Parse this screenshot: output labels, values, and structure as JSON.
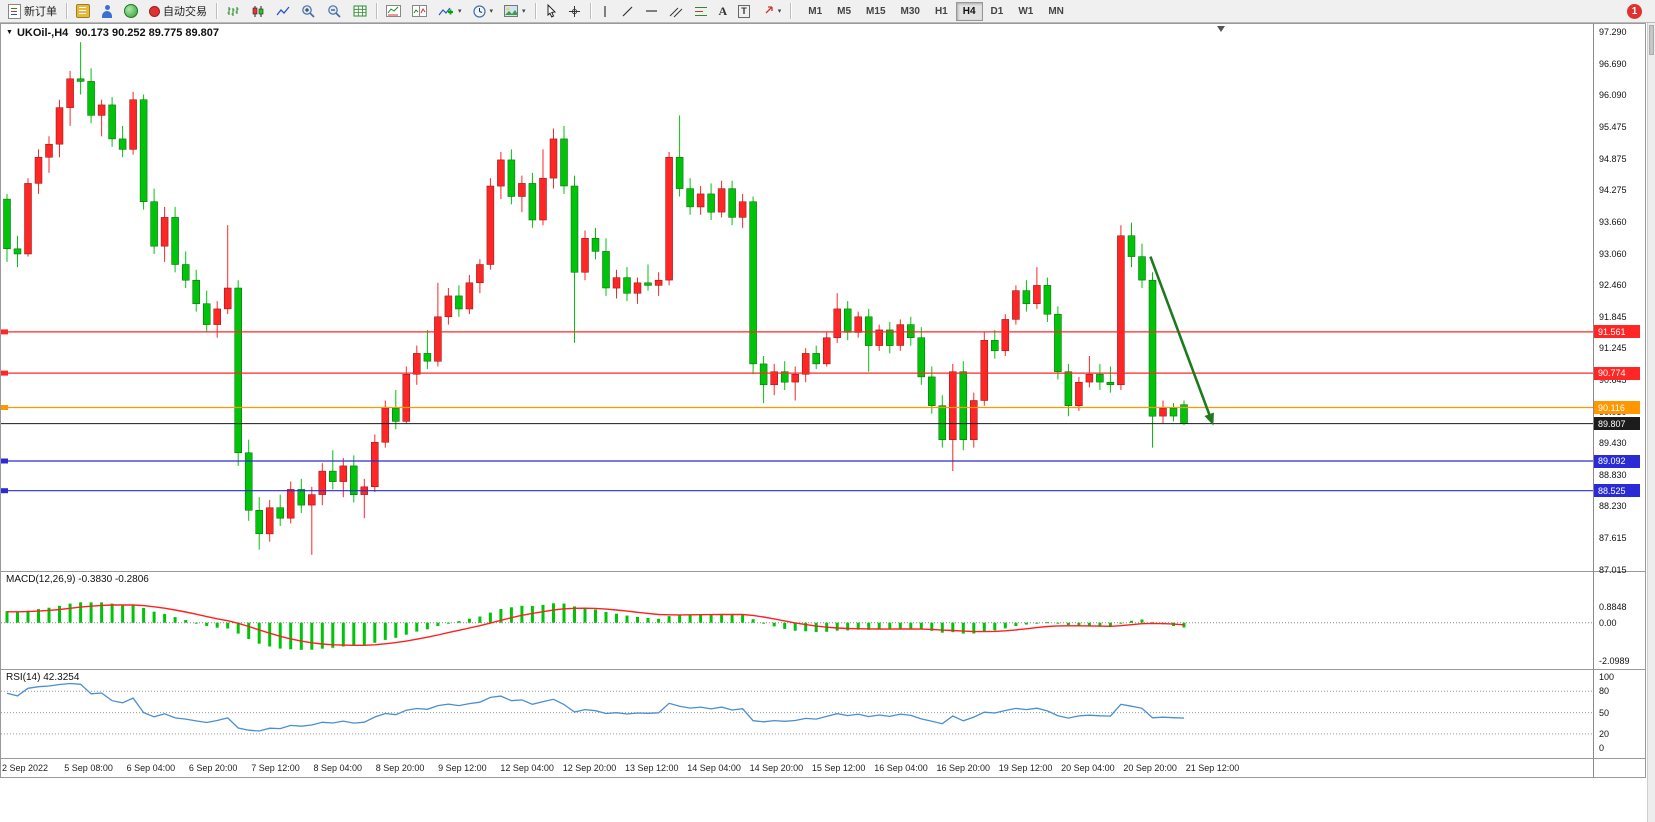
{
  "toolbar": {
    "new_order_label": "新订单",
    "autotrading_label": "自动交易",
    "text_tool_label": "A",
    "text_label_tool_label": "T",
    "timeframes": [
      "M1",
      "M5",
      "M15",
      "M30",
      "H1",
      "H4",
      "D1",
      "W1",
      "MN"
    ],
    "active_timeframe": "H4",
    "notification_count": "1"
  },
  "chart_header": {
    "symbol": "UKOil-,H4",
    "ohlc": "90.173 90.252 89.775 89.807"
  },
  "chart_data": {
    "type": "candlestick",
    "symbol": "UKOil-",
    "timeframe": "H4",
    "ohlc_display": {
      "open": "90.173",
      "high": "90.252",
      "low": "89.775",
      "close": "89.807"
    },
    "bull_color": "#ff2626",
    "bear_color": "#00c40a",
    "ylim": [
      86.99,
      97.39
    ],
    "y_ticks": [
      "97.290",
      "96.690",
      "96.090",
      "95.475",
      "94.875",
      "94.275",
      "93.660",
      "93.060",
      "92.460",
      "91.845",
      "91.245",
      "90.645",
      "90.030",
      "89.430",
      "88.830",
      "88.230",
      "87.615",
      "87.015"
    ],
    "x_labels": [
      "2 Sep 2022",
      "5 Sep 08:00",
      "6 Sep 04:00",
      "6 Sep 20:00",
      "7 Sep 12:00",
      "8 Sep 04:00",
      "8 Sep 20:00",
      "9 Sep 12:00",
      "12 Sep 04:00",
      "12 Sep 20:00",
      "13 Sep 12:00",
      "14 Sep 04:00",
      "14 Sep 20:00",
      "15 Sep 12:00",
      "16 Sep 04:00",
      "16 Sep 20:00",
      "19 Sep 12:00",
      "20 Sep 04:00",
      "20 Sep 20:00",
      "21 Sep 12:00"
    ],
    "hlines": [
      {
        "price": 91.561,
        "label": "91.561",
        "color": "#ff2626"
      },
      {
        "price": 90.774,
        "label": "90.774",
        "color": "#ff2626"
      },
      {
        "price": 90.116,
        "label": "90.116",
        "color": "#ff9800"
      },
      {
        "price": 89.092,
        "label": "89.092",
        "color": "#2b2bd5"
      },
      {
        "price": 88.525,
        "label": "88.525",
        "color": "#2b2bd5"
      }
    ],
    "current_price": {
      "price": 89.807,
      "label": "89.807",
      "color": "#1c1c1c"
    },
    "trend_arrow": {
      "from_bar": 108.8,
      "from_price": 93.0,
      "to_bar": 114.6,
      "to_price": 89.88,
      "color": "#1f7a1f"
    },
    "ohlc": [
      [
        94.1,
        94.2,
        92.9,
        93.15
      ],
      [
        93.15,
        93.4,
        92.8,
        93.05
      ],
      [
        93.05,
        94.5,
        93.0,
        94.4
      ],
      [
        94.4,
        95.05,
        94.2,
        94.9
      ],
      [
        94.9,
        95.3,
        94.6,
        95.15
      ],
      [
        95.15,
        96.0,
        94.9,
        95.85
      ],
      [
        95.85,
        96.55,
        95.5,
        96.4
      ],
      [
        96.4,
        97.1,
        96.1,
        96.35
      ],
      [
        96.35,
        96.6,
        95.55,
        95.7
      ],
      [
        95.7,
        96.0,
        95.3,
        95.9
      ],
      [
        95.9,
        96.05,
        95.1,
        95.25
      ],
      [
        95.25,
        95.5,
        94.9,
        95.05
      ],
      [
        95.05,
        96.15,
        94.95,
        96.0
      ],
      [
        96.0,
        96.1,
        93.9,
        94.05
      ],
      [
        94.05,
        94.3,
        93.05,
        93.2
      ],
      [
        93.2,
        93.95,
        92.9,
        93.75
      ],
      [
        93.75,
        93.95,
        92.7,
        92.85
      ],
      [
        92.85,
        93.1,
        92.4,
        92.55
      ],
      [
        92.55,
        92.75,
        91.95,
        92.1
      ],
      [
        92.1,
        92.35,
        91.55,
        91.7
      ],
      [
        91.7,
        92.15,
        91.45,
        92.0
      ],
      [
        92.0,
        93.6,
        91.9,
        92.4
      ],
      [
        92.4,
        92.55,
        89.0,
        89.25
      ],
      [
        89.25,
        89.5,
        87.95,
        88.15
      ],
      [
        88.15,
        88.4,
        87.4,
        87.7
      ],
      [
        87.7,
        88.35,
        87.55,
        88.2
      ],
      [
        88.2,
        88.45,
        87.85,
        88.0
      ],
      [
        88.0,
        88.7,
        87.9,
        88.55
      ],
      [
        88.55,
        88.75,
        88.1,
        88.25
      ],
      [
        88.25,
        88.6,
        87.3,
        88.45
      ],
      [
        88.45,
        89.05,
        88.25,
        88.9
      ],
      [
        88.9,
        89.3,
        88.55,
        88.7
      ],
      [
        88.7,
        89.15,
        88.4,
        89.0
      ],
      [
        89.0,
        89.2,
        88.3,
        88.45
      ],
      [
        88.45,
        88.75,
        88.0,
        88.6
      ],
      [
        88.6,
        89.6,
        88.5,
        89.45
      ],
      [
        89.45,
        90.25,
        89.35,
        90.1
      ],
      [
        90.1,
        90.45,
        89.7,
        89.85
      ],
      [
        89.85,
        90.9,
        89.8,
        90.75
      ],
      [
        90.75,
        91.3,
        90.55,
        91.15
      ],
      [
        91.15,
        91.6,
        90.85,
        91.0
      ],
      [
        91.0,
        92.5,
        90.9,
        91.85
      ],
      [
        91.85,
        92.4,
        91.7,
        92.25
      ],
      [
        92.25,
        92.45,
        91.85,
        92.0
      ],
      [
        92.0,
        92.65,
        91.9,
        92.5
      ],
      [
        92.5,
        92.95,
        92.3,
        92.85
      ],
      [
        92.85,
        94.5,
        92.75,
        94.35
      ],
      [
        94.35,
        95.0,
        94.1,
        94.85
      ],
      [
        94.85,
        95.05,
        94.0,
        94.15
      ],
      [
        94.15,
        94.55,
        93.85,
        94.4
      ],
      [
        94.4,
        94.6,
        93.55,
        93.7
      ],
      [
        93.7,
        95.05,
        93.6,
        94.5
      ],
      [
        94.5,
        95.45,
        94.3,
        95.25
      ],
      [
        95.25,
        95.5,
        94.2,
        94.35
      ],
      [
        94.35,
        94.55,
        91.35,
        92.7
      ],
      [
        92.7,
        93.5,
        92.55,
        93.35
      ],
      [
        93.35,
        93.55,
        92.95,
        93.1
      ],
      [
        93.1,
        93.35,
        92.25,
        92.4
      ],
      [
        92.4,
        92.75,
        92.2,
        92.6
      ],
      [
        92.6,
        92.8,
        92.15,
        92.3
      ],
      [
        92.3,
        92.6,
        92.1,
        92.5
      ],
      [
        92.5,
        92.85,
        92.35,
        92.45
      ],
      [
        92.45,
        92.7,
        92.25,
        92.55
      ],
      [
        92.55,
        95.0,
        92.45,
        94.9
      ],
      [
        94.9,
        95.7,
        94.15,
        94.3
      ],
      [
        94.3,
        94.5,
        93.8,
        93.95
      ],
      [
        93.95,
        94.35,
        93.8,
        94.2
      ],
      [
        94.2,
        94.4,
        93.7,
        93.85
      ],
      [
        93.85,
        94.45,
        93.75,
        94.3
      ],
      [
        94.3,
        94.45,
        93.6,
        93.75
      ],
      [
        93.75,
        94.2,
        93.55,
        94.05
      ],
      [
        94.05,
        94.15,
        90.75,
        90.95
      ],
      [
        90.95,
        91.1,
        90.2,
        90.55
      ],
      [
        90.55,
        90.95,
        90.35,
        90.8
      ],
      [
        90.8,
        91.0,
        90.45,
        90.6
      ],
      [
        90.6,
        90.9,
        90.25,
        90.75
      ],
      [
        90.75,
        91.25,
        90.6,
        91.15
      ],
      [
        91.15,
        91.3,
        90.85,
        90.95
      ],
      [
        90.95,
        91.55,
        90.9,
        91.45
      ],
      [
        91.45,
        92.3,
        91.35,
        92.0
      ],
      [
        92.0,
        92.15,
        91.4,
        91.55
      ],
      [
        91.55,
        91.95,
        91.45,
        91.85
      ],
      [
        91.85,
        92.0,
        90.8,
        91.3
      ],
      [
        91.3,
        91.7,
        91.2,
        91.6
      ],
      [
        91.6,
        91.75,
        91.15,
        91.3
      ],
      [
        91.3,
        91.8,
        91.2,
        91.7
      ],
      [
        91.7,
        91.85,
        91.3,
        91.45
      ],
      [
        91.45,
        91.65,
        90.55,
        90.7
      ],
      [
        90.7,
        90.9,
        90.0,
        90.15
      ],
      [
        90.15,
        90.35,
        89.35,
        89.5
      ],
      [
        89.5,
        90.95,
        88.9,
        90.8
      ],
      [
        90.8,
        91.0,
        89.3,
        89.5
      ],
      [
        89.5,
        90.4,
        89.35,
        90.25
      ],
      [
        90.25,
        91.55,
        90.15,
        91.4
      ],
      [
        91.4,
        91.6,
        91.05,
        91.2
      ],
      [
        91.2,
        91.9,
        91.1,
        91.8
      ],
      [
        91.8,
        92.45,
        91.7,
        92.35
      ],
      [
        92.35,
        92.55,
        91.95,
        92.1
      ],
      [
        92.1,
        92.8,
        92.0,
        92.45
      ],
      [
        92.45,
        92.6,
        91.75,
        91.9
      ],
      [
        91.9,
        92.05,
        90.65,
        90.8
      ],
      [
        90.8,
        90.95,
        89.95,
        90.15
      ],
      [
        90.15,
        90.7,
        90.05,
        90.6
      ],
      [
        90.6,
        91.1,
        90.5,
        90.75
      ],
      [
        90.75,
        90.95,
        90.45,
        90.6
      ],
      [
        90.6,
        90.9,
        90.4,
        90.55
      ],
      [
        90.55,
        93.6,
        90.45,
        93.4
      ],
      [
        93.4,
        93.65,
        92.8,
        93.0
      ],
      [
        93.0,
        93.25,
        92.4,
        92.55
      ],
      [
        92.55,
        92.7,
        89.35,
        89.95
      ],
      [
        89.95,
        90.25,
        89.8,
        90.1
      ],
      [
        90.1,
        90.2,
        89.85,
        89.95
      ],
      [
        90.17,
        90.25,
        89.78,
        89.81
      ]
    ],
    "indicators": [
      {
        "name": "macd",
        "label": "MACD(12,26,9) -0.3830 -0.2806",
        "fast": 12,
        "slow": 26,
        "signal": 9,
        "values": [
          -0.383,
          -0.2806
        ],
        "y_ticks": [
          {
            "v": 0.8848,
            "t": "0.8848"
          },
          {
            "v": 0,
            "t": "0.00"
          },
          {
            "v": -2.0989,
            "t": "-2.0989"
          }
        ],
        "display_range": [
          -2.35,
          2.6
        ],
        "hist_color": "#00c40a",
        "signal_color": "#ff2020"
      },
      {
        "name": "rsi",
        "label": "RSI(14) 42.3254",
        "period": 14,
        "value": 42.3254,
        "y_ticks": [
          {
            "v": 100,
            "t": "100"
          },
          {
            "v": 80,
            "t": "80"
          },
          {
            "v": 50,
            "t": "50"
          },
          {
            "v": 20,
            "t": "20"
          },
          {
            "v": 0,
            "t": "0"
          }
        ],
        "levels": [
          80,
          50,
          20
        ],
        "display_range": [
          -14,
          110
        ],
        "line_color": "#4a8fd2"
      }
    ]
  }
}
